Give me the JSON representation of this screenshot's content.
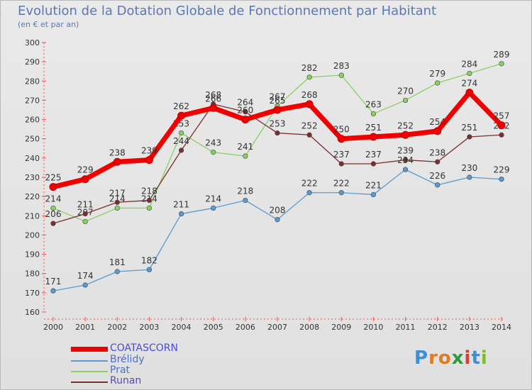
{
  "header": {
    "title": "Evolution de la Dotation Globale de Fonctionnement par Habitant",
    "subtitle": "(en € et par an)"
  },
  "logo": {
    "text": "Proxiti",
    "letters": [
      "P",
      "r",
      "o",
      "x",
      "i",
      "t",
      "i"
    ],
    "colors": [
      "#3a8fd8",
      "#e07b1f",
      "#e07b1f",
      "#2a9a3a",
      "#e03a2a",
      "#3a8fd8",
      "#7dbb2e"
    ]
  },
  "chart_data": {
    "type": "line",
    "x": [
      2000,
      2001,
      2002,
      2003,
      2004,
      2005,
      2006,
      2007,
      2008,
      2009,
      2010,
      2011,
      2012,
      2013,
      2014
    ],
    "ylim": [
      160,
      300
    ],
    "yticks": [
      160,
      170,
      180,
      190,
      200,
      210,
      220,
      230,
      240,
      250,
      260,
      270,
      280,
      290,
      300
    ],
    "grid": false,
    "legend_position": "bottom-left",
    "series": [
      {
        "name": "Prat",
        "color": "#88d060",
        "values": [
          214,
          207,
          214,
          214,
          253,
          243,
          241,
          267,
          282,
          283,
          263,
          270,
          279,
          284,
          289
        ]
      },
      {
        "name": "Runan",
        "color": "#7a2f2f",
        "values": [
          206,
          211,
          217,
          218,
          244,
          268,
          264,
          253,
          252,
          237,
          237,
          239,
          238,
          251,
          252
        ]
      },
      {
        "name": "Brélidy",
        "color": "#5a9ad0",
        "values": [
          171,
          174,
          181,
          182,
          211,
          214,
          218,
          208,
          222,
          222,
          221,
          234,
          226,
          230,
          229
        ]
      },
      {
        "name": "COATASCORN",
        "color": "#f00000",
        "values": [
          225,
          229,
          238,
          239,
          262,
          266,
          260,
          265,
          268,
          250,
          251,
          252,
          254,
          274,
          257
        ]
      }
    ],
    "legend_order": [
      "COATASCORN",
      "Brélidy",
      "Prat",
      "Runan"
    ]
  }
}
